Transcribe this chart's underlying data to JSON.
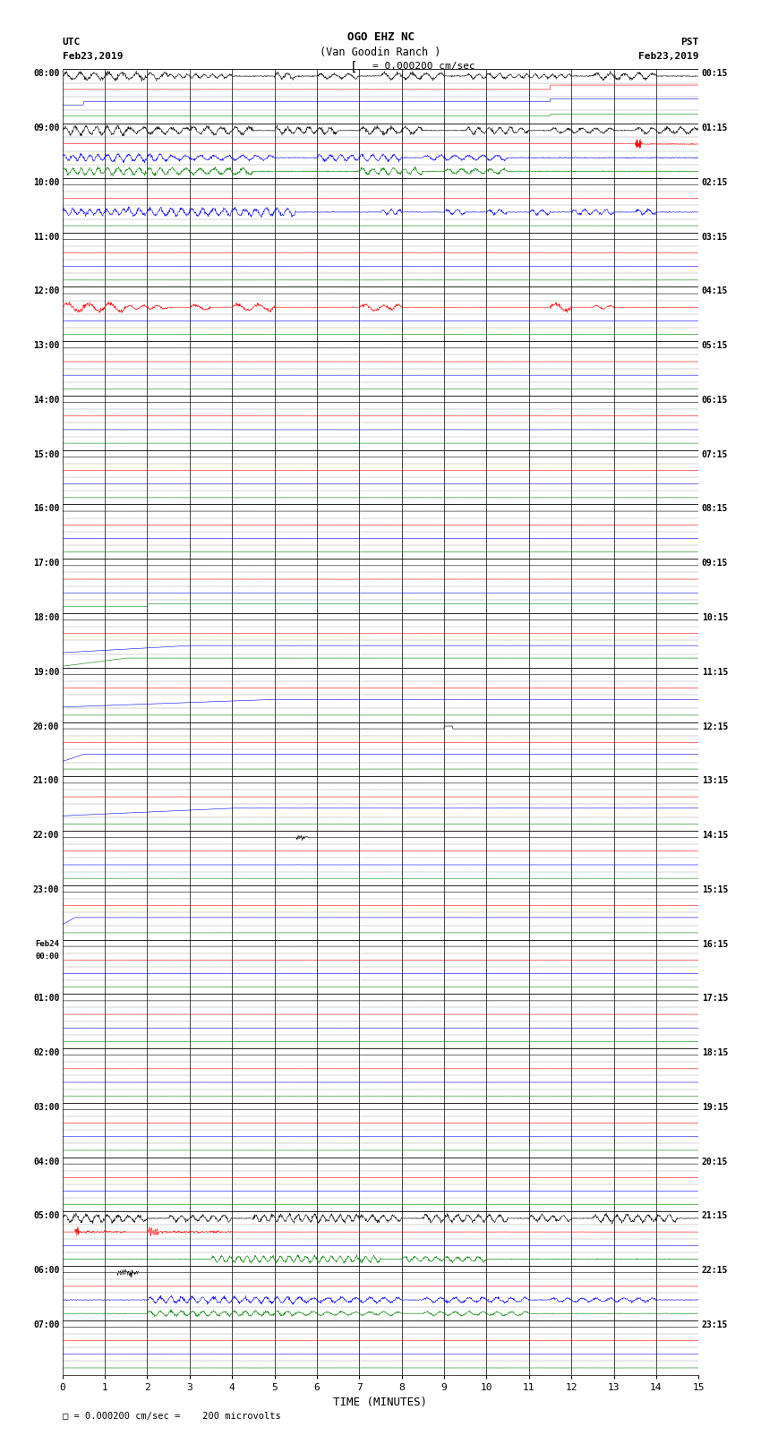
{
  "title_line1": "OGO EHZ NC",
  "title_line2": "(Van Goodin Ranch )",
  "scale_label": "= 0.000200 cm/sec",
  "xlabel": "TIME (MINUTES)",
  "footer_label": "□ = 0.000200 cm/sec =    200 microvolts",
  "utc_label1": "UTC",
  "utc_label2": "Feb23,2019",
  "pst_label1": "PST",
  "pst_label2": "Feb23,2019",
  "left_times": [
    "08:00",
    "09:00",
    "10:00",
    "11:00",
    "12:00",
    "13:00",
    "14:00",
    "15:00",
    "16:00",
    "17:00",
    "18:00",
    "19:00",
    "20:00",
    "21:00",
    "22:00",
    "23:00",
    "Feb24\n00:00",
    "01:00",
    "02:00",
    "03:00",
    "04:00",
    "05:00",
    "06:00",
    "07:00"
  ],
  "right_times": [
    "00:15",
    "01:15",
    "02:15",
    "03:15",
    "04:15",
    "05:15",
    "06:15",
    "07:15",
    "08:15",
    "09:15",
    "10:15",
    "11:15",
    "12:15",
    "13:15",
    "14:15",
    "15:15",
    "16:15",
    "17:15",
    "18:15",
    "19:15",
    "20:15",
    "21:15",
    "22:15",
    "23:15"
  ],
  "n_rows": 24,
  "x_ticks": [
    0,
    1,
    2,
    3,
    4,
    5,
    6,
    7,
    8,
    9,
    10,
    11,
    12,
    13,
    14,
    15
  ],
  "bg_color": "#ffffff"
}
